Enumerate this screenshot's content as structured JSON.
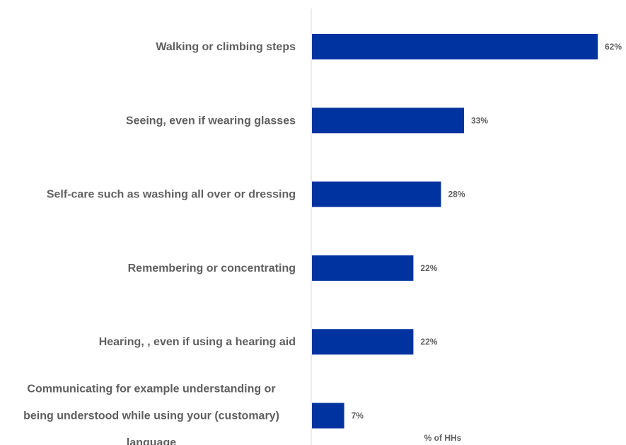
{
  "chart_data": {
    "type": "bar",
    "orientation": "horizontal",
    "categories": [
      "Walking or climbing steps",
      "Seeing, even if wearing glasses",
      "Self-care such as washing all over or dressing",
      "Remembering or concentrating",
      "Hearing, , even if using a hearing aid",
      "Communicating for example understanding or being understood while using your (customary) language"
    ],
    "category_lines": [
      [
        "Walking or climbing steps"
      ],
      [
        "Seeing, even if wearing glasses"
      ],
      [
        "Self-care such as washing all over or dressing"
      ],
      [
        "Remembering or concentrating"
      ],
      [
        "Hearing, , even if using a hearing aid"
      ],
      [
        "Communicating for example understanding or",
        "being understood while using your (customary)",
        "language"
      ]
    ],
    "values": [
      62,
      33,
      28,
      22,
      22,
      7
    ],
    "value_labels": [
      "62%",
      "33%",
      "28%",
      "22%",
      "22%",
      "7%"
    ],
    "xlabel": "% of HHs",
    "xlim": [
      0,
      62
    ],
    "grid": false,
    "legend": "none",
    "bar_color": "#0033a0",
    "axis_color": "#d9d9d9",
    "text_color": "#5f5f5f"
  }
}
